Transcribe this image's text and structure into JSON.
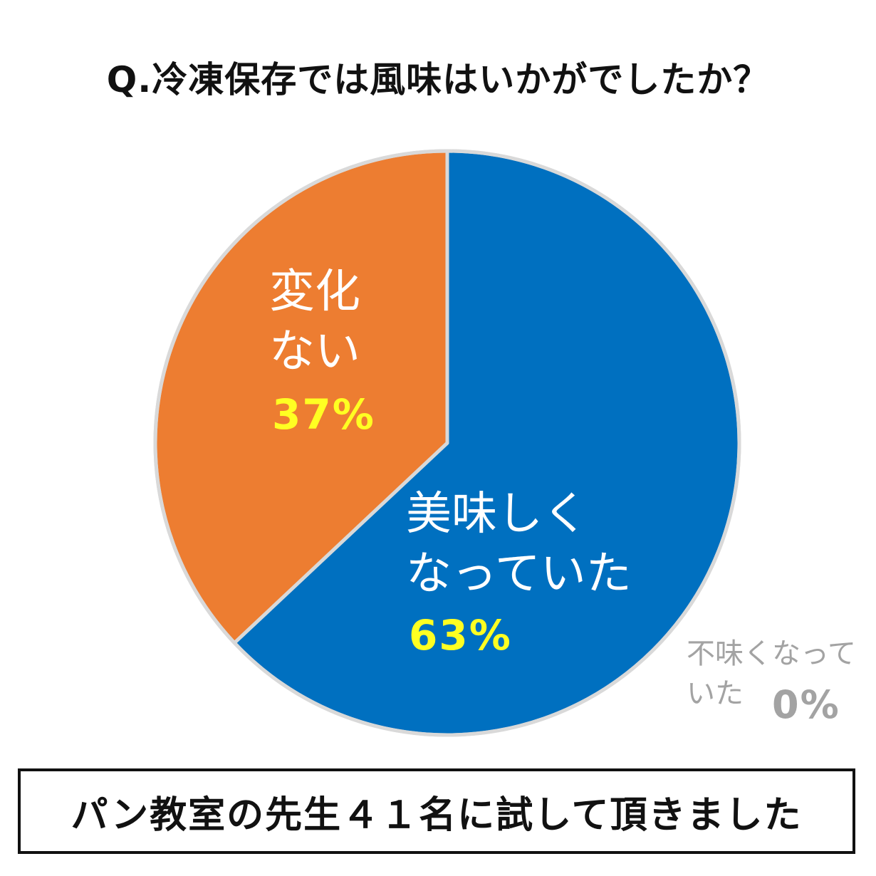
{
  "chart_data": {
    "type": "pie",
    "title": "Q.冷凍保存では風味はいかがでしたか？",
    "slices": [
      {
        "label_line1": "美味しく",
        "label_line2": "なっていた",
        "value": 63,
        "value_text": "63%",
        "color": "#0070c0"
      },
      {
        "label_line1": "変化",
        "label_line2": "ない",
        "value": 37,
        "value_text": "37%",
        "color": "#ed7d31"
      },
      {
        "label_line1": "不味くなって",
        "label_line2": "いた",
        "value": 0,
        "value_text": "0%",
        "color": "#a3a3a3"
      }
    ],
    "start": "12 o'clock",
    "direction": "clockwise",
    "legend": "none"
  },
  "footer": {
    "text": "パン教室の先生４１名に試して頂きました"
  },
  "colors": {
    "label_text": "#ffffff",
    "percent_text": "#ffff22",
    "zero_text": "#a3a3a3",
    "slice_border": "#d9d9d9"
  }
}
